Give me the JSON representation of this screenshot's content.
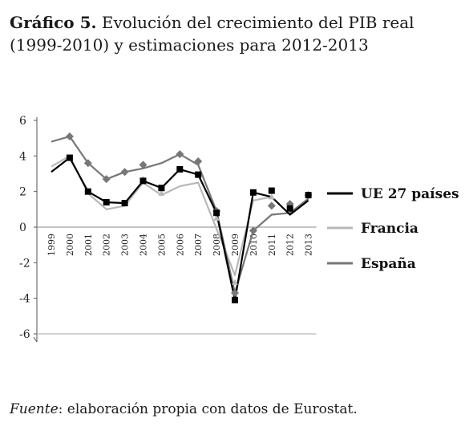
{
  "title": {
    "lead": "Gráfico 5.",
    "text": " Evolución del crecimiento del PIB real (1999-2010) y estimaciones para 2012-2013"
  },
  "source": {
    "italic": "Fuente",
    "text": ": elaboración propia con datos de Eurostat."
  },
  "chart_data": {
    "type": "line",
    "title": "",
    "xlabel": "",
    "ylabel": "",
    "ylim": [
      -6,
      6
    ],
    "yticks": [
      "6",
      "4",
      "2",
      "0",
      "-2",
      "-4",
      "-6"
    ],
    "grid": false,
    "legend_position": "right",
    "categories": [
      "1999",
      "2000",
      "2001",
      "2002",
      "2003",
      "2004",
      "2005",
      "2006",
      "2007",
      "2008",
      "2009",
      "2010",
      "2011",
      "2012",
      "2013"
    ],
    "series": [
      {
        "name": "UE 27 países",
        "color": "#000000",
        "marker": "square",
        "line": [
          [
            0,
            3.1
          ],
          [
            1,
            3.9
          ],
          [
            2,
            2.0
          ],
          [
            3,
            1.4
          ],
          [
            4,
            1.35
          ],
          [
            5,
            2.6
          ],
          [
            6,
            2.2
          ],
          [
            7,
            3.25
          ],
          [
            8,
            2.95
          ],
          [
            9,
            0.8
          ],
          [
            10,
            -4.1
          ],
          [
            11,
            1.95
          ],
          [
            12,
            1.7
          ],
          [
            13,
            0.7
          ],
          [
            14,
            1.5
          ]
        ],
        "points": [
          [
            1,
            3.9
          ],
          [
            2,
            2.0
          ],
          [
            3,
            1.4
          ],
          [
            4,
            1.35
          ],
          [
            5,
            2.6
          ],
          [
            6,
            2.2
          ],
          [
            7,
            3.25
          ],
          [
            8,
            2.95
          ],
          [
            9,
            0.8
          ],
          [
            10,
            -4.1
          ],
          [
            11,
            1.95
          ],
          [
            12,
            2.05
          ],
          [
            13,
            1.05
          ],
          [
            14,
            1.8
          ]
        ]
      },
      {
        "name": "Francia",
        "color": "#b8b8b8",
        "marker": "triangle",
        "line": [
          [
            0,
            3.4
          ],
          [
            1,
            4.0
          ],
          [
            2,
            1.9
          ],
          [
            3,
            1.0
          ],
          [
            4,
            1.2
          ],
          [
            5,
            2.5
          ],
          [
            6,
            1.8
          ],
          [
            7,
            2.3
          ],
          [
            8,
            2.5
          ],
          [
            9,
            -0.1
          ],
          [
            10,
            -2.7
          ],
          [
            11,
            1.5
          ],
          [
            12,
            1.7
          ]
        ],
        "points": [
          [
            5,
            2.7
          ],
          [
            6,
            1.9
          ],
          [
            9,
            0.5
          ],
          [
            10,
            -3.1
          ],
          [
            12,
            1.7
          ]
        ]
      },
      {
        "name": "España",
        "color": "#777777",
        "marker": "diamond",
        "line": [
          [
            0,
            4.8
          ],
          [
            1,
            5.1
          ],
          [
            2,
            3.6
          ],
          [
            3,
            2.7
          ],
          [
            4,
            3.1
          ],
          [
            5,
            3.3
          ],
          [
            6,
            3.6
          ],
          [
            7,
            4.1
          ],
          [
            8,
            3.5
          ],
          [
            9,
            0.9
          ],
          [
            10,
            -3.7
          ],
          [
            11,
            -0.2
          ],
          [
            12,
            0.7
          ],
          [
            13,
            0.8
          ],
          [
            14,
            1.6
          ]
        ],
        "points": [
          [
            1,
            5.1
          ],
          [
            2,
            3.6
          ],
          [
            3,
            2.7
          ],
          [
            4,
            3.1
          ],
          [
            5,
            3.5
          ],
          [
            7,
            4.1
          ],
          [
            8,
            3.7
          ],
          [
            9,
            0.9
          ],
          [
            10,
            -3.7
          ],
          [
            11,
            -0.2
          ],
          [
            12,
            1.2
          ],
          [
            13,
            1.3
          ],
          [
            14,
            1.8
          ]
        ]
      }
    ]
  }
}
